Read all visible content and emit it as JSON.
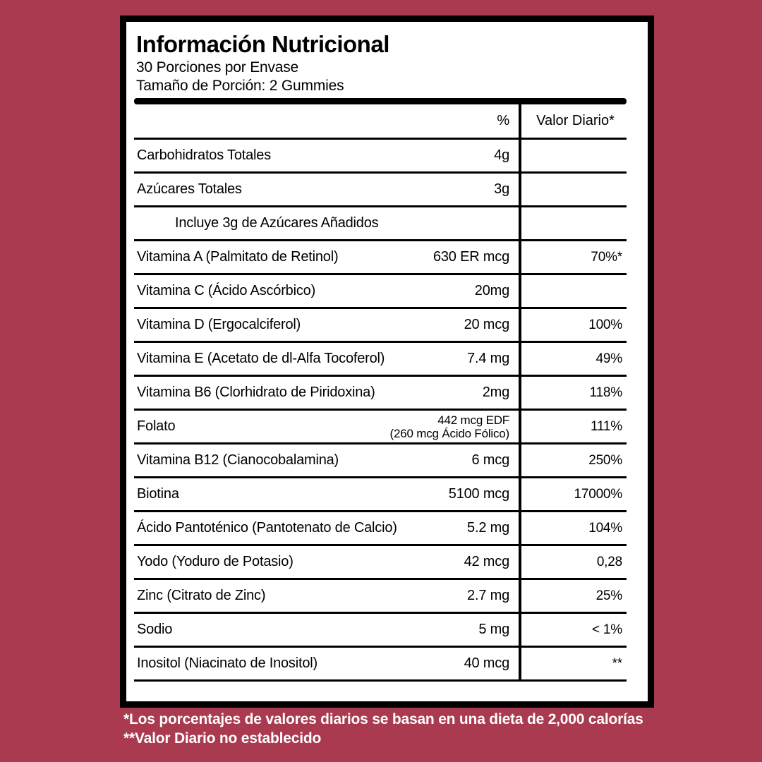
{
  "colors": {
    "background": "#A93A50",
    "card": "#FFFFFF",
    "ink": "#000000",
    "footer_text": "#FFFFFF"
  },
  "label": {
    "title": "Información Nutricional",
    "servings_per_container": "30 Porciones por Envase",
    "serving_size": "Tamaño de Porción: 2 Gummies"
  },
  "table": {
    "header": {
      "amount": "%",
      "daily_value": "Valor Diario*"
    },
    "rows": [
      {
        "name": "Carbohidratos Totales",
        "amount": "4g",
        "daily_value": ""
      },
      {
        "name": "Azúcares Totales",
        "amount": "3g",
        "daily_value": ""
      },
      {
        "name": "Incluye 3g de Azúcares Añadidos",
        "amount": "",
        "daily_value": "",
        "indent": true
      },
      {
        "name": "Vitamina A (Palmitato de Retinol)",
        "amount": "630 ER mcg",
        "daily_value": "70%*"
      },
      {
        "name": "Vitamina C (Ácido Ascórbico)",
        "amount": "20mg",
        "daily_value": ""
      },
      {
        "name": "Vitamina D (Ergocalciferol)",
        "amount": "20 mcg",
        "daily_value": "100%"
      },
      {
        "name": "Vitamina E (Acetato de dl-Alfa Tocoferol)",
        "amount": "7.4 mg",
        "daily_value": "49%"
      },
      {
        "name": "Vitamina B6 (Clorhidrato de Piridoxina)",
        "amount": "2mg",
        "daily_value": "118%"
      },
      {
        "name": "Folato",
        "amount": "442 mcg EDF",
        "amount_secondary": "(260 mcg Ácido Fólico)",
        "daily_value": "111%"
      },
      {
        "name": "Vitamina B12 (Cianocobalamina)",
        "amount": "6 mcg",
        "daily_value": "250%"
      },
      {
        "name": "Biotina",
        "amount": "5100 mcg",
        "daily_value": "17000%"
      },
      {
        "name": "Ácido Pantoténico (Pantotenato de Calcio)",
        "amount": "5.2 mg",
        "daily_value": "104%"
      },
      {
        "name": "Yodo (Yoduro de Potasio)",
        "amount": "42 mcg",
        "daily_value": "0,28"
      },
      {
        "name": "Zinc (Citrato de Zinc)",
        "amount": "2.7 mg",
        "daily_value": "25%"
      },
      {
        "name": "Sodio",
        "amount": "5 mg",
        "daily_value": "< 1%"
      },
      {
        "name": "Inositol (Niacinato de Inositol)",
        "amount": "40 mcg",
        "daily_value": "**"
      }
    ]
  },
  "footnotes": {
    "daily_values": "*Los porcentajes de valores diarios se basan en una dieta de 2,000 calorías",
    "not_established": "**Valor Diario no establecido"
  }
}
